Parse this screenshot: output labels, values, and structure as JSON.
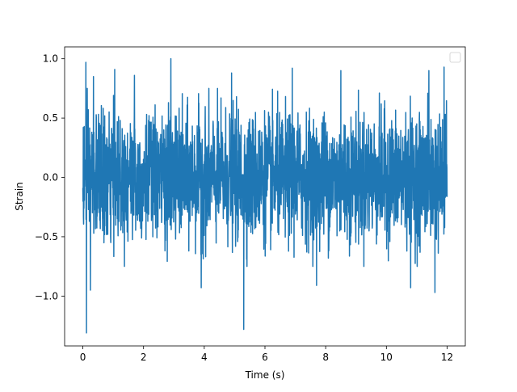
{
  "chart_data": {
    "type": "line",
    "title": "",
    "xlabel": "Time (s)",
    "ylabel": "Strain",
    "xlim": [
      -0.6,
      12.6
    ],
    "ylim": [
      -1.42,
      1.1
    ],
    "xticks": [
      0,
      2,
      4,
      6,
      8,
      10,
      12
    ],
    "xtick_labels": [
      "0",
      "2",
      "4",
      "6",
      "8",
      "10",
      "12"
    ],
    "yticks": [
      1.0,
      0.5,
      0.0,
      -0.5,
      -1.0
    ],
    "ytick_labels": [
      "1.0",
      "0.5",
      "0.0",
      "−0.5",
      "−1.0"
    ],
    "grid": false,
    "legend": {
      "placement": "top-right",
      "entries": []
    },
    "series": [
      {
        "color": "#1f77b4",
        "x_range": [
          0,
          12
        ],
        "n_points": 2400,
        "description": "noise-like signal, mostly within ±0.6",
        "peaks": [
          {
            "x": 0.12,
            "y": -1.31
          },
          {
            "x": 0.1,
            "y": 0.97
          },
          {
            "x": 0.25,
            "y": -0.95
          },
          {
            "x": 0.35,
            "y": 0.85
          },
          {
            "x": 1.05,
            "y": 0.91
          },
          {
            "x": 1.7,
            "y": 0.86
          },
          {
            "x": 2.9,
            "y": 1.0
          },
          {
            "x": 3.9,
            "y": -0.93
          },
          {
            "x": 4.9,
            "y": 0.88
          },
          {
            "x": 5.3,
            "y": -1.28
          },
          {
            "x": 6.9,
            "y": 0.92
          },
          {
            "x": 7.7,
            "y": -0.91
          },
          {
            "x": 8.5,
            "y": 0.9
          },
          {
            "x": 10.8,
            "y": -0.93
          },
          {
            "x": 11.4,
            "y": 0.9
          },
          {
            "x": 11.6,
            "y": -0.97
          },
          {
            "x": 11.9,
            "y": 0.93
          }
        ]
      }
    ]
  }
}
